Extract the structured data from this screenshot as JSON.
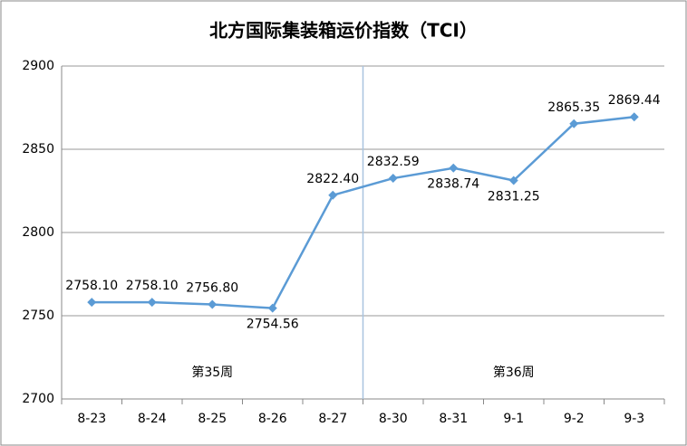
{
  "chart_data": {
    "type": "line",
    "title": "北方国际集装箱运价指数（TCI）",
    "categories": [
      "8-23",
      "8-24",
      "8-25",
      "8-26",
      "8-27",
      "8-30",
      "8-31",
      "9-1",
      "9-2",
      "9-3"
    ],
    "series": [
      {
        "color": "#5b9bd5",
        "values": [
          2758.1,
          2758.1,
          2756.8,
          2754.56,
          2822.4,
          2832.59,
          2838.74,
          2831.25,
          2865.35,
          2869.44
        ],
        "value_labels": [
          "2758.10",
          "2758.10",
          "2756.80",
          "2754.56",
          "2822.40",
          "2832.59",
          "2838.74",
          "2831.25",
          "2865.35",
          "2869.44"
        ]
      }
    ],
    "ylim": [
      2700,
      2900
    ],
    "yticks": [
      2700,
      2750,
      2800,
      2850,
      2900
    ],
    "grid": true,
    "annotations": [
      "第35周",
      "第36周"
    ]
  }
}
